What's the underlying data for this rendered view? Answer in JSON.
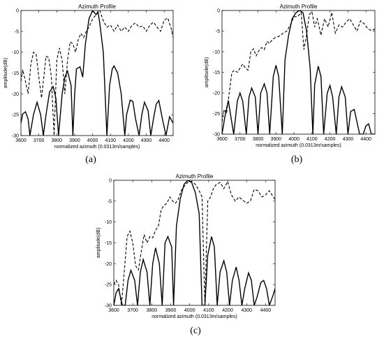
{
  "chart_data": [
    {
      "type": "line",
      "panel_label": "(a)",
      "title": "Azimuth Profile",
      "xlabel": "normalized azimuth (0.0313m/samples)",
      "ylabel": "amplitude(dB)",
      "xlim": [
        3600,
        4450
      ],
      "ylim": [
        -30,
        0
      ],
      "xticks": [
        3600,
        3700,
        3800,
        3900,
        4000,
        4100,
        4200,
        4300,
        4400
      ],
      "yticks": [
        0,
        -5,
        -10,
        -15,
        -20,
        -25,
        -30
      ],
      "grid": false,
      "series": [
        {
          "style": "solid",
          "x": [
            3600,
            3610,
            3625,
            3640,
            3650,
            3670,
            3690,
            3710,
            3725,
            3740,
            3760,
            3780,
            3795,
            3810,
            3830,
            3845,
            3860,
            3880,
            3890,
            3900,
            3910,
            3930,
            3945,
            3960,
            3980,
            4000,
            4020,
            4030,
            4040,
            4060,
            4080,
            4095,
            4110,
            4120,
            4140,
            4160,
            4180,
            4190,
            4210,
            4225,
            4240,
            4260,
            4275,
            4290,
            4310,
            4325,
            4340,
            4355,
            4370,
            4390,
            4410,
            4430,
            4450
          ],
          "y": [
            -27,
            -24.8,
            -24.3,
            -26,
            -30,
            -25,
            -22,
            -25,
            -30,
            -25,
            -19.5,
            -18.3,
            -21,
            -30,
            -20,
            -16,
            -14.5,
            -18,
            -30,
            -20,
            -14,
            -13.5,
            -16,
            -8,
            -2,
            0,
            -1,
            -0.3,
            -3,
            -10,
            -30,
            -18,
            -14,
            -13.3,
            -15,
            -20,
            -30,
            -25,
            -21.5,
            -21.8,
            -26,
            -30,
            -25,
            -22,
            -24,
            -30,
            -26,
            -22.5,
            -21.6,
            -26,
            -30,
            -25.5,
            -27
          ]
        },
        {
          "style": "dashed",
          "x": [
            3600,
            3610,
            3625,
            3640,
            3655,
            3670,
            3685,
            3700,
            3715,
            3725,
            3740,
            3755,
            3770,
            3785,
            3800,
            3815,
            3830,
            3845,
            3860,
            3875,
            3890,
            3905,
            3920,
            3935,
            3950,
            3965,
            3980,
            4000,
            4020,
            4040,
            4060,
            4080,
            4100,
            4120,
            4140,
            4160,
            4180,
            4200,
            4220,
            4240,
            4260,
            4280,
            4300,
            4320,
            4340,
            4360,
            4380,
            4400,
            4420,
            4440,
            4450
          ],
          "y": [
            -17,
            -14.2,
            -17,
            -20,
            -13,
            -10,
            -10.5,
            -16,
            -21,
            -17,
            -11,
            -11.3,
            -16,
            -30,
            -12,
            -9,
            -12,
            -20,
            -12,
            -7.5,
            -8,
            -10,
            -7,
            -5.5,
            -6.5,
            -5,
            -4,
            -2,
            -1,
            0,
            -2.5,
            -4,
            -3.5,
            -5,
            -3.5,
            -5,
            -4,
            -5,
            -3.5,
            -3,
            -4,
            -3.7,
            -5,
            -3.5,
            -2.8,
            -4,
            -5,
            -2.3,
            -1.8,
            -4.5,
            -6.5
          ]
        }
      ]
    },
    {
      "type": "line",
      "panel_label": "(b)",
      "title": "Azimuth Profile",
      "xlabel": "normalized azimuth (0.0313m/samples)",
      "ylabel": "amplitude(dB)",
      "xlim": [
        3600,
        4450
      ],
      "ylim": [
        -30,
        0
      ],
      "xticks": [
        3600,
        3700,
        3800,
        3900,
        4000,
        4100,
        4200,
        4300,
        4400
      ],
      "yticks": [
        0,
        -5,
        -10,
        -15,
        -20,
        -25,
        -30
      ],
      "grid": false,
      "series": [
        {
          "style": "solid",
          "x": [
            3600,
            3615,
            3635,
            3650,
            3665,
            3685,
            3700,
            3715,
            3735,
            3750,
            3765,
            3785,
            3800,
            3815,
            3835,
            3850,
            3865,
            3885,
            3900,
            3915,
            3935,
            3950,
            3970,
            3990,
            4010,
            4030,
            4050,
            4070,
            4090,
            4105,
            4115,
            4135,
            4150,
            4165,
            4185,
            4200,
            4215,
            4235,
            4250,
            4265,
            4285,
            4300,
            4315,
            4335,
            4350,
            4365,
            4385,
            4400,
            4415,
            4430,
            4450
          ],
          "y": [
            -30,
            -26,
            -21.8,
            -26,
            -30,
            -22,
            -20,
            -22,
            -30,
            -21,
            -18.8,
            -21,
            -30,
            -20,
            -17.8,
            -20,
            -30,
            -16,
            -13.3,
            -16,
            -30,
            -12,
            -6,
            -2,
            -0.6,
            0,
            -0.5,
            -5,
            -14,
            -30,
            -18,
            -13.5,
            -16,
            -30,
            -20,
            -18.2,
            -21,
            -30,
            -21,
            -18.5,
            -21,
            -30,
            -24.5,
            -24,
            -27,
            -30,
            -30,
            -28,
            -27.5,
            -30,
            -30
          ]
        },
        {
          "style": "dashed",
          "x": [
            3600,
            3612,
            3625,
            3640,
            3655,
            3670,
            3685,
            3700,
            3715,
            3730,
            3745,
            3760,
            3775,
            3790,
            3805,
            3820,
            3835,
            3850,
            3865,
            3880,
            3900,
            3920,
            3940,
            3960,
            3980,
            4000,
            4020,
            4040,
            4055,
            4070,
            4085,
            4100,
            4115,
            4130,
            4150,
            4170,
            4190,
            4210,
            4230,
            4250,
            4270,
            4290,
            4310,
            4330,
            4350,
            4370,
            4390,
            4410,
            4430,
            4450
          ],
          "y": [
            -27,
            -24,
            -25,
            -20,
            -15,
            -14.5,
            -15,
            -14,
            -13,
            -14,
            -14.5,
            -10,
            -9.3,
            -11,
            -9.7,
            -9,
            -9.5,
            -7.5,
            -8,
            -7,
            -6.5,
            -6.2,
            -5.5,
            -5,
            -3.5,
            -1.5,
            -1.5,
            -0.5,
            -9.5,
            -6,
            -1,
            -0.3,
            -4,
            -2,
            -6,
            -2,
            -4,
            -0.5,
            -5.5,
            -3.5,
            -4,
            -2.8,
            -2,
            -3.5,
            -5,
            -2.5,
            -3.2,
            -4.4,
            -4.9,
            -4.5
          ]
        }
      ]
    },
    {
      "type": "line",
      "panel_label": "(c)",
      "title": "Azimuth Profile",
      "xlabel": "normalized azimuth (0.0313m/samples)",
      "ylabel": "amplitude(dB)",
      "xlim": [
        3600,
        4450
      ],
      "ylim": [
        -30,
        0
      ],
      "xticks": [
        3600,
        3700,
        3800,
        3900,
        4000,
        4100,
        4200,
        4300,
        4400
      ],
      "yticks": [
        0,
        -5,
        -10,
        -15,
        -20,
        -25,
        -30
      ],
      "grid": false,
      "series": [
        {
          "style": "solid",
          "x": [
            3600,
            3612,
            3625,
            3645,
            3660,
            3675,
            3690,
            3710,
            3725,
            3740,
            3755,
            3775,
            3790,
            3805,
            3820,
            3840,
            3855,
            3870,
            3885,
            3905,
            3915,
            3930,
            3950,
            3970,
            3990,
            4010,
            4030,
            4050,
            4065,
            4080,
            4095,
            4115,
            4130,
            4145,
            4160,
            4180,
            4195,
            4210,
            4225,
            4245,
            4260,
            4275,
            4290,
            4310,
            4325,
            4340,
            4355,
            4375,
            4390,
            4405,
            4420,
            4440,
            4450
          ],
          "y": [
            -30,
            -27,
            -26,
            -30,
            -30,
            -24,
            -21.6,
            -24,
            -30,
            -22,
            -19,
            -22,
            -30,
            -20,
            -16.2,
            -20,
            -30,
            -15,
            -13.5,
            -16,
            -30,
            -11,
            -4.5,
            -1,
            0,
            -0.5,
            -3,
            -8,
            -30,
            -30,
            -18,
            -13.5,
            -16,
            -30,
            -22,
            -19.3,
            -22,
            -30,
            -24,
            -20.8,
            -24,
            -30,
            -26,
            -22.2,
            -24,
            -30,
            -28,
            -24.5,
            -24,
            -26,
            -30,
            -27.5,
            -26
          ]
        },
        {
          "style": "dashed",
          "x": [
            3600,
            3612,
            3625,
            3640,
            3655,
            3670,
            3685,
            3700,
            3715,
            3730,
            3745,
            3760,
            3775,
            3790,
            3805,
            3820,
            3835,
            3850,
            3865,
            3880,
            3895,
            3910,
            3925,
            3940,
            3955,
            3970,
            3990,
            4010,
            4030,
            4050,
            4065,
            4080,
            4095,
            4110,
            4125,
            4140,
            4160,
            4180,
            4200,
            4220,
            4240,
            4260,
            4280,
            4300,
            4320,
            4340,
            4360,
            4380,
            4400,
            4420,
            4440,
            4450
          ],
          "y": [
            -25,
            -24,
            -25,
            -30,
            -22,
            -13.5,
            -12.2,
            -15,
            -20.5,
            -21.5,
            -17,
            -13,
            -15,
            -13.5,
            -13.8,
            -12,
            -11,
            -7,
            -6,
            -5.5,
            -4,
            -5,
            -5.5,
            -4.5,
            -2.5,
            -1.5,
            -0.5,
            -0.2,
            -1,
            -2.5,
            -4,
            -30,
            -5,
            -4,
            -2,
            -1,
            -0.5,
            -2,
            -0.3,
            -3.5,
            -5,
            -4,
            -4.8,
            -5.5,
            -5,
            -2.2,
            -2.5,
            -4,
            -3.5,
            -2.5,
            -4,
            -4.5
          ]
        }
      ]
    }
  ]
}
